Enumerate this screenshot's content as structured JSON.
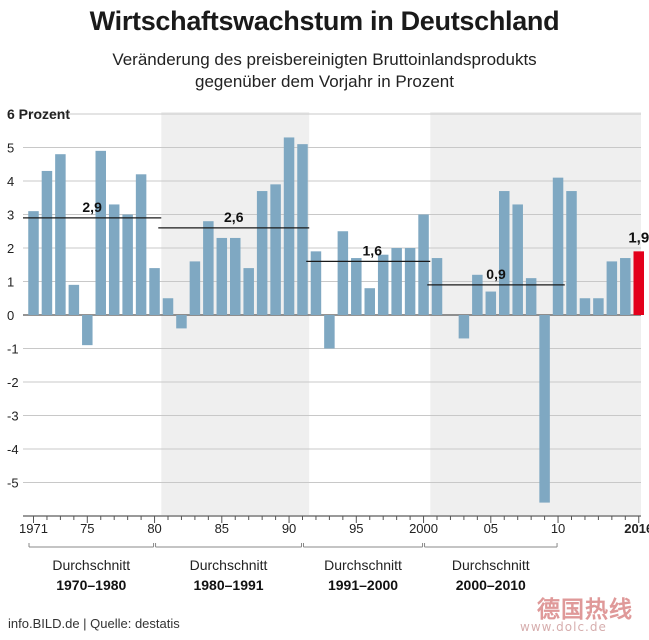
{
  "title": "Wirtschaftswachstum in Deutschland",
  "subtitle_line1": "Veränderung des preisbereinigten Bruttoinlandsprodukts",
  "subtitle_line2": "gegenüber dem Vorjahr in Prozent",
  "footer": "info.BILD.de | Quelle: destatis",
  "watermark": {
    "text": "德国热线",
    "url": "www.dolc.de"
  },
  "colors": {
    "bar": "#7fa8c2",
    "highlight": "#e3001b",
    "shade": "#efefef",
    "grid": "#c8c8c8"
  },
  "chart_data": {
    "type": "bar",
    "ylabel": "6 Prozent",
    "ylim": [
      -6,
      6
    ],
    "y_ticks": [
      "-5",
      "-4",
      "-3",
      "-2",
      "-1",
      "0",
      "1",
      "2",
      "3",
      "4",
      "5"
    ],
    "x_ticks": [
      {
        "year": 1971,
        "label": "1971"
      },
      {
        "year": 1975,
        "label": "75"
      },
      {
        "year": 1980,
        "label": "80"
      },
      {
        "year": 1985,
        "label": "85"
      },
      {
        "year": 1990,
        "label": "90"
      },
      {
        "year": 1995,
        "label": "95"
      },
      {
        "year": 2000,
        "label": "2000"
      },
      {
        "year": 2005,
        "label": "05"
      },
      {
        "year": 2010,
        "label": "10"
      },
      {
        "year": 2016,
        "label": "2016"
      }
    ],
    "categories": [
      1971,
      1972,
      1973,
      1974,
      1975,
      1976,
      1977,
      1978,
      1979,
      1980,
      1981,
      1982,
      1983,
      1984,
      1985,
      1986,
      1987,
      1988,
      1989,
      1990,
      1991,
      1992,
      1993,
      1994,
      1995,
      1996,
      1997,
      1998,
      1999,
      2000,
      2001,
      2002,
      2003,
      2004,
      2005,
      2006,
      2007,
      2008,
      2009,
      2010,
      2011,
      2012,
      2013,
      2014,
      2015,
      2016
    ],
    "values": [
      3.1,
      4.3,
      4.8,
      0.9,
      -0.9,
      4.9,
      3.3,
      3.0,
      4.2,
      1.4,
      0.5,
      -0.4,
      1.6,
      2.8,
      2.3,
      2.3,
      1.4,
      3.7,
      3.9,
      5.3,
      5.1,
      1.9,
      -1.0,
      2.5,
      1.7,
      0.8,
      1.8,
      2.0,
      2.0,
      3.0,
      1.7,
      0.0,
      -0.7,
      1.2,
      0.7,
      3.7,
      3.3,
      1.1,
      -5.6,
      4.1,
      3.7,
      0.5,
      0.5,
      1.6,
      1.7,
      1.9
    ],
    "highlight_year": 2016,
    "highlight_label": "1,9",
    "averages": [
      {
        "start": 1970,
        "end": 1980,
        "value": 2.9,
        "label": "2,9",
        "caption": "Durchschnitt",
        "period": "1970–1980"
      },
      {
        "start": 1980,
        "end": 1991,
        "value": 2.6,
        "label": "2,6",
        "caption": "Durchschnitt",
        "period": "1980–1991"
      },
      {
        "start": 1991,
        "end": 2000,
        "value": 1.6,
        "label": "1,6",
        "caption": "Durchschnitt",
        "period": "1991–2000"
      },
      {
        "start": 2000,
        "end": 2010,
        "value": 0.9,
        "label": "0,9",
        "caption": "Durchschnitt",
        "period": "2000–2010"
      }
    ]
  }
}
